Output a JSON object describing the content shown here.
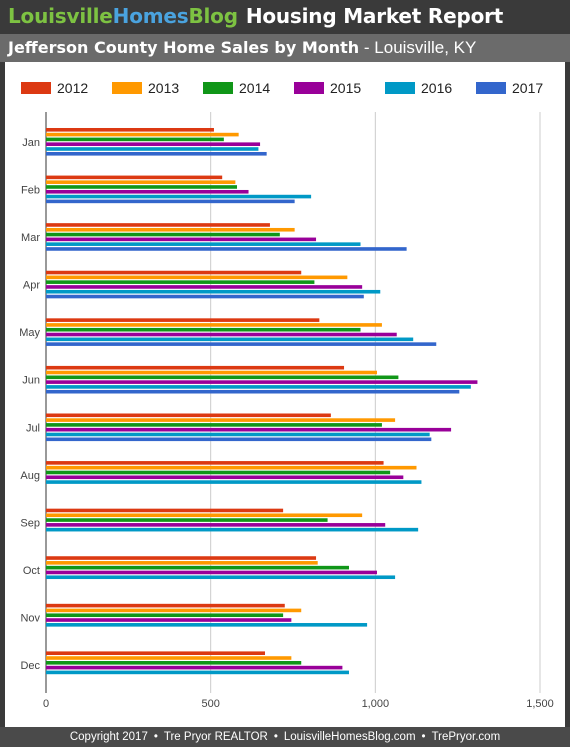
{
  "header": {
    "brand_part1": "Louisville",
    "brand_part2": "Homes",
    "brand_part3": "Blog",
    "title": "Housing Market Report"
  },
  "subtitle": {
    "bold": "Jefferson County Home Sales by Month",
    "rest": " - Louisville, KY"
  },
  "footer": {
    "items": [
      "Copyright 2017",
      "Tre Pryor REALTOR",
      "LouisvilleHomesBlog.com",
      "TrePryor.com"
    ],
    "separator": "•"
  },
  "chart_data": {
    "type": "bar",
    "orientation": "horizontal",
    "categories": [
      "Jan",
      "Feb",
      "Mar",
      "Apr",
      "May",
      "Jun",
      "Jul",
      "Aug",
      "Sep",
      "Oct",
      "Nov",
      "Dec"
    ],
    "series": [
      {
        "name": "2012",
        "color": "#dc3912",
        "values": [
          510,
          535,
          680,
          775,
          830,
          905,
          865,
          1025,
          720,
          820,
          725,
          665
        ]
      },
      {
        "name": "2013",
        "color": "#ff9900",
        "values": [
          585,
          575,
          755,
          915,
          1020,
          1005,
          1060,
          1125,
          960,
          825,
          775,
          745
        ]
      },
      {
        "name": "2014",
        "color": "#109618",
        "values": [
          540,
          580,
          710,
          815,
          955,
          1070,
          1020,
          1045,
          855,
          920,
          720,
          775
        ]
      },
      {
        "name": "2015",
        "color": "#990099",
        "values": [
          650,
          615,
          820,
          960,
          1065,
          1310,
          1230,
          1085,
          1030,
          1005,
          745,
          900
        ]
      },
      {
        "name": "2016",
        "color": "#0099c6",
        "values": [
          645,
          805,
          955,
          1015,
          1115,
          1290,
          1165,
          1140,
          1130,
          1060,
          975,
          920
        ]
      },
      {
        "name": "2017",
        "color": "#3366cc",
        "values": [
          670,
          755,
          1095,
          965,
          1185,
          1255,
          1170,
          null,
          null,
          null,
          null,
          null
        ]
      }
    ],
    "xlim": [
      0,
      1500
    ],
    "xticks": [
      0,
      500,
      1000,
      1500
    ],
    "xtick_labels": [
      "0",
      "500",
      "1,000",
      "1,500"
    ],
    "grid": true,
    "legend_position": "top"
  }
}
